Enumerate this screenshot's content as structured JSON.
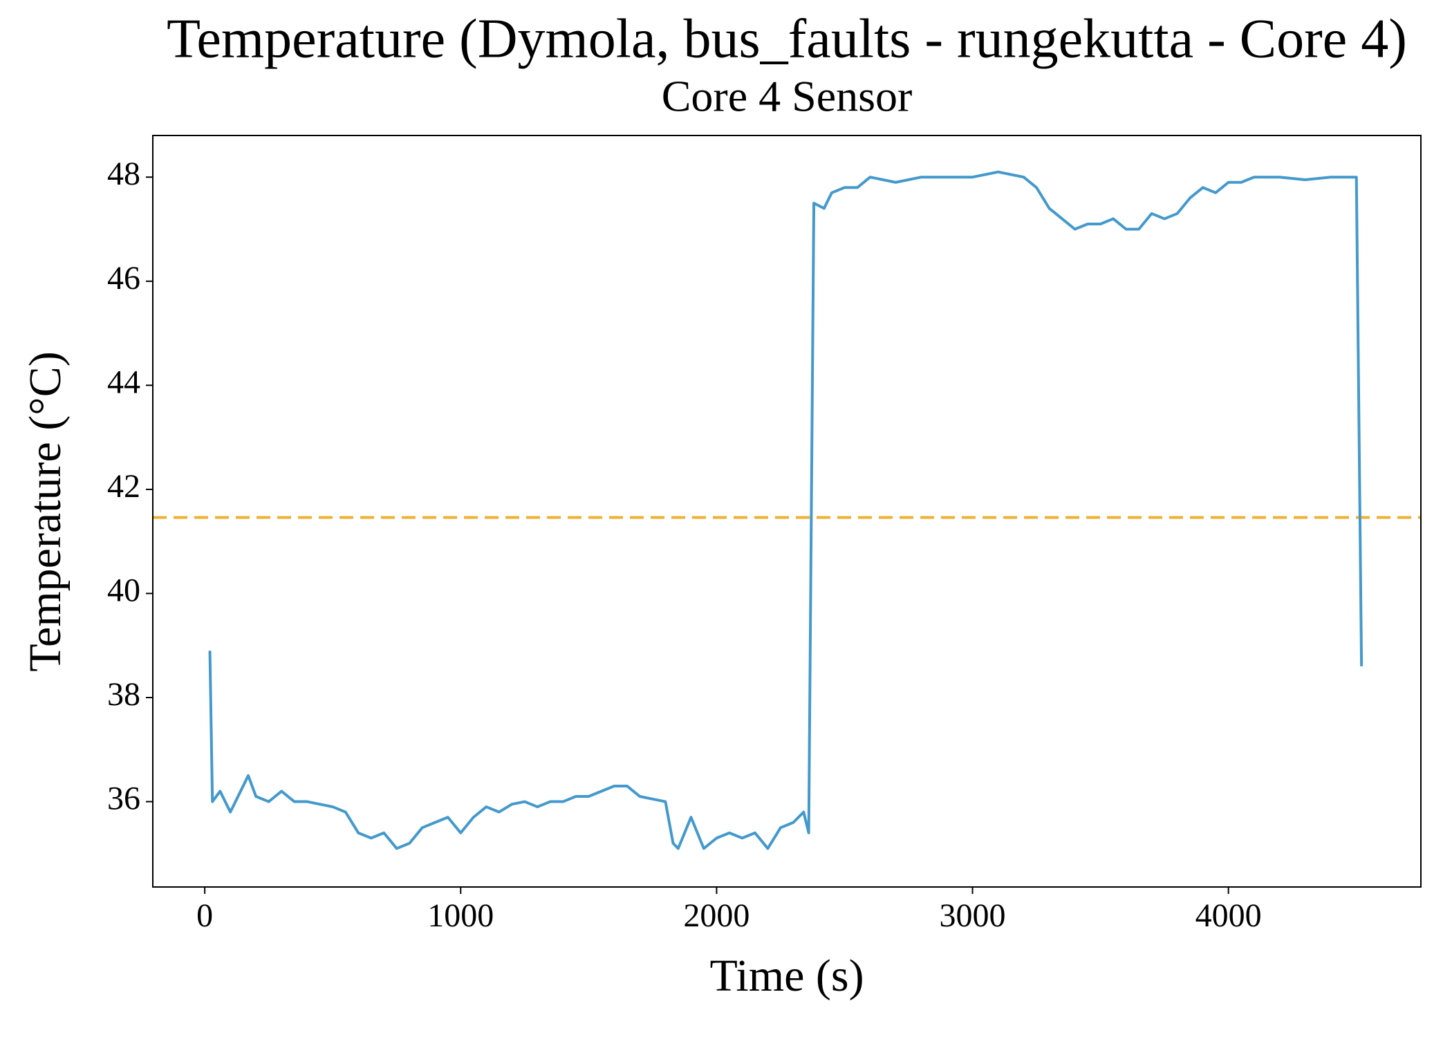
{
  "chart_data": {
    "type": "line",
    "title": "Temperature (Dymola, bus_faults - rungekutta - Core 4)",
    "subtitle": "Core 4 Sensor",
    "x_label": "Time (s)",
    "y_label": "Temperature (°C)",
    "x": [
      20,
      30,
      60,
      100,
      130,
      170,
      200,
      250,
      300,
      350,
      400,
      450,
      500,
      550,
      600,
      650,
      700,
      750,
      800,
      850,
      900,
      950,
      1000,
      1050,
      1100,
      1150,
      1200,
      1250,
      1300,
      1350,
      1400,
      1450,
      1500,
      1550,
      1600,
      1650,
      1700,
      1750,
      1800,
      1830,
      1850,
      1900,
      1950,
      2000,
      2050,
      2100,
      2150,
      2200,
      2250,
      2300,
      2340,
      2360,
      2380,
      2420,
      2450,
      2500,
      2550,
      2600,
      2700,
      2800,
      2900,
      3000,
      3100,
      3200,
      3250,
      3300,
      3350,
      3400,
      3450,
      3500,
      3550,
      3600,
      3650,
      3700,
      3750,
      3800,
      3850,
      3900,
      3950,
      4000,
      4050,
      4100,
      4200,
      4300,
      4400,
      4500,
      4520
    ],
    "series": [
      {
        "name": "Core 4",
        "color": "#4499cc",
        "values": [
          38.9,
          36.0,
          36.2,
          35.8,
          36.1,
          36.5,
          36.1,
          36.0,
          36.2,
          36.0,
          36.0,
          35.95,
          35.9,
          35.8,
          35.4,
          35.3,
          35.4,
          35.1,
          35.2,
          35.5,
          35.6,
          35.7,
          35.4,
          35.7,
          35.9,
          35.8,
          35.95,
          36.0,
          35.9,
          36.0,
          36.0,
          36.1,
          36.1,
          36.2,
          36.3,
          36.3,
          36.1,
          36.05,
          36.0,
          35.2,
          35.1,
          35.7,
          35.1,
          35.3,
          35.4,
          35.3,
          35.4,
          35.1,
          35.5,
          35.6,
          35.8,
          35.4,
          47.5,
          47.4,
          47.7,
          47.8,
          47.8,
          48.0,
          47.9,
          48.0,
          48.0,
          48.0,
          48.1,
          48.0,
          47.8,
          47.4,
          47.2,
          47.0,
          47.1,
          47.1,
          47.2,
          47.0,
          47.0,
          47.3,
          47.2,
          47.3,
          47.6,
          47.8,
          47.7,
          47.9,
          47.9,
          48.0,
          48.0,
          47.95,
          48.0,
          48.0,
          38.6
        ]
      }
    ],
    "hlines": [
      {
        "value": 41.46,
        "color": "#f0b030",
        "style": "dashed"
      }
    ],
    "xlim": [
      -203,
      4752
    ],
    "xticks": [
      0,
      1000,
      2000,
      3000,
      4000
    ],
    "ylim": [
      34.36,
      48.8
    ],
    "yticks": [
      36,
      38,
      40,
      42,
      44,
      46,
      48
    ],
    "grid": false
  }
}
